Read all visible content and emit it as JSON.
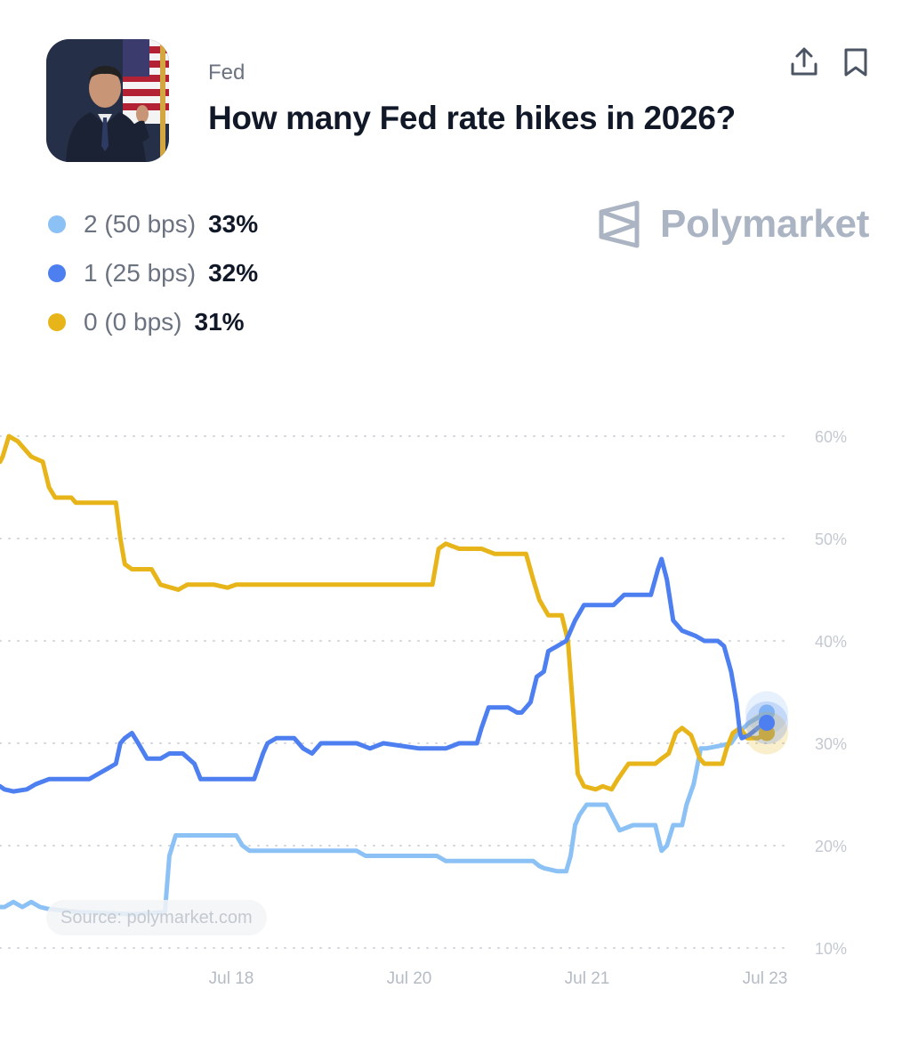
{
  "market": {
    "category": "Fed",
    "title": "How many Fed rate hikes in 2026?",
    "brand": "Polymarket"
  },
  "icons": {
    "share": "share-upload-icon",
    "bookmark": "bookmark-icon",
    "brand_logo": "polymarket-logo-icon"
  },
  "outcomes": [
    {
      "label": "2 (50 bps)",
      "value": "33%",
      "color": "#8cc1f5"
    },
    {
      "label": "1 (25 bps)",
      "value": "32%",
      "color": "#4d7ff0"
    },
    {
      "label": "0 (0 bps)",
      "value": "31%",
      "color": "#e7b519"
    }
  ],
  "source": "Source: polymarket.com",
  "chart_data": {
    "type": "line",
    "y_tick_labels": [
      "60%",
      "50%",
      "40%",
      "30%",
      "20%",
      "10%"
    ],
    "x_tick_labels": [
      "Jul 18",
      "Jul 20",
      "Jul 21",
      "Jul 23"
    ],
    "ylim": [
      10,
      60
    ],
    "grid": true,
    "series": [
      {
        "name": "2 (50 bps)",
        "color": "#8cc1f5",
        "points": [
          [
            0,
            14
          ],
          [
            5,
            14
          ],
          [
            15,
            14.5
          ],
          [
            25,
            14
          ],
          [
            35,
            14.5
          ],
          [
            45,
            14
          ],
          [
            55,
            13.8
          ],
          [
            90,
            13.5
          ],
          [
            150,
            13.3
          ],
          [
            185,
            13.5
          ],
          [
            190,
            19
          ],
          [
            197,
            21
          ],
          [
            215,
            21
          ],
          [
            265,
            21
          ],
          [
            272,
            20
          ],
          [
            280,
            19.5
          ],
          [
            300,
            19.5
          ],
          [
            400,
            19.5
          ],
          [
            410,
            19
          ],
          [
            450,
            19
          ],
          [
            490,
            19
          ],
          [
            500,
            18.5
          ],
          [
            540,
            18.5
          ],
          [
            598,
            18.5
          ],
          [
            605,
            18
          ],
          [
            610,
            17.8
          ],
          [
            625,
            17.5
          ],
          [
            635,
            17.5
          ],
          [
            640,
            19
          ],
          [
            645,
            22
          ],
          [
            650,
            23
          ],
          [
            658,
            24
          ],
          [
            680,
            24
          ],
          [
            686,
            23
          ],
          [
            695,
            21.5
          ],
          [
            710,
            22
          ],
          [
            735,
            22
          ],
          [
            742,
            19.5
          ],
          [
            748,
            20
          ],
          [
            755,
            22
          ],
          [
            765,
            22
          ],
          [
            770,
            24
          ],
          [
            778,
            26
          ],
          [
            786,
            29.5
          ],
          [
            792,
            29.5
          ],
          [
            810,
            29.8
          ],
          [
            820,
            30
          ],
          [
            828,
            31
          ],
          [
            840,
            32
          ],
          [
            850,
            32.5
          ],
          [
            860,
            33
          ]
        ]
      },
      {
        "name": "1 (25 bps)",
        "color": "#4d7ff0",
        "points": [
          [
            0,
            25.8
          ],
          [
            5,
            25.5
          ],
          [
            15,
            25.3
          ],
          [
            30,
            25.5
          ],
          [
            40,
            26
          ],
          [
            55,
            26.5
          ],
          [
            70,
            26.5
          ],
          [
            100,
            26.5
          ],
          [
            110,
            27
          ],
          [
            120,
            27.5
          ],
          [
            130,
            28
          ],
          [
            135,
            30
          ],
          [
            140,
            30.5
          ],
          [
            148,
            31
          ],
          [
            155,
            30
          ],
          [
            165,
            28.5
          ],
          [
            180,
            28.5
          ],
          [
            190,
            29
          ],
          [
            205,
            29
          ],
          [
            218,
            28
          ],
          [
            225,
            26.5
          ],
          [
            235,
            26.5
          ],
          [
            285,
            26.5
          ],
          [
            295,
            29
          ],
          [
            300,
            30
          ],
          [
            310,
            30.5
          ],
          [
            330,
            30.5
          ],
          [
            340,
            29.5
          ],
          [
            350,
            29
          ],
          [
            360,
            30
          ],
          [
            400,
            30
          ],
          [
            415,
            29.5
          ],
          [
            430,
            30
          ],
          [
            470,
            29.5
          ],
          [
            500,
            29.5
          ],
          [
            515,
            30
          ],
          [
            535,
            30
          ],
          [
            540,
            31.5
          ],
          [
            548,
            33.5
          ],
          [
            570,
            33.5
          ],
          [
            580,
            33
          ],
          [
            585,
            33
          ],
          [
            595,
            34
          ],
          [
            602,
            36.5
          ],
          [
            610,
            37
          ],
          [
            615,
            39
          ],
          [
            625,
            39.5
          ],
          [
            635,
            40
          ],
          [
            645,
            42
          ],
          [
            655,
            43.5
          ],
          [
            688,
            43.5
          ],
          [
            700,
            44.5
          ],
          [
            730,
            44.5
          ],
          [
            738,
            47
          ],
          [
            742,
            48
          ],
          [
            748,
            46
          ],
          [
            755,
            42
          ],
          [
            765,
            41
          ],
          [
            780,
            40.5
          ],
          [
            790,
            40
          ],
          [
            805,
            40
          ],
          [
            812,
            39.5
          ],
          [
            820,
            37
          ],
          [
            826,
            34
          ],
          [
            830,
            31
          ],
          [
            832,
            30.5
          ],
          [
            840,
            30.8
          ],
          [
            850,
            31.5
          ],
          [
            860,
            32
          ]
        ]
      },
      {
        "name": "0 (0 bps)",
        "color": "#e7b519",
        "points": [
          [
            0,
            57.5
          ],
          [
            3,
            58
          ],
          [
            10,
            60
          ],
          [
            20,
            59.5
          ],
          [
            35,
            58
          ],
          [
            48,
            57.5
          ],
          [
            55,
            55
          ],
          [
            62,
            54
          ],
          [
            80,
            54
          ],
          [
            85,
            53.5
          ],
          [
            130,
            53.5
          ],
          [
            135,
            50
          ],
          [
            140,
            47.5
          ],
          [
            148,
            47
          ],
          [
            170,
            47
          ],
          [
            180,
            45.5
          ],
          [
            200,
            45
          ],
          [
            210,
            45.5
          ],
          [
            240,
            45.5
          ],
          [
            255,
            45.2
          ],
          [
            265,
            45.5
          ],
          [
            400,
            45.5
          ],
          [
            485,
            45.5
          ],
          [
            492,
            49
          ],
          [
            500,
            49.5
          ],
          [
            515,
            49
          ],
          [
            540,
            49
          ],
          [
            555,
            48.5
          ],
          [
            590,
            48.5
          ],
          [
            598,
            46
          ],
          [
            605,
            44
          ],
          [
            615,
            42.5
          ],
          [
            630,
            42.5
          ],
          [
            637,
            40
          ],
          [
            643,
            33
          ],
          [
            648,
            27
          ],
          [
            655,
            25.8
          ],
          [
            668,
            25.5
          ],
          [
            676,
            25.8
          ],
          [
            686,
            25.5
          ],
          [
            693,
            26.5
          ],
          [
            705,
            28
          ],
          [
            725,
            28
          ],
          [
            735,
            28
          ],
          [
            742,
            28.5
          ],
          [
            750,
            29
          ],
          [
            758,
            31
          ],
          [
            765,
            31.5
          ],
          [
            775,
            30.8
          ],
          [
            785,
            28.5
          ],
          [
            790,
            28
          ],
          [
            800,
            28
          ],
          [
            810,
            28
          ],
          [
            815,
            29.5
          ],
          [
            822,
            31
          ],
          [
            830,
            31.5
          ],
          [
            838,
            30.5
          ],
          [
            850,
            30.5
          ],
          [
            860,
            31
          ]
        ]
      }
    ]
  }
}
